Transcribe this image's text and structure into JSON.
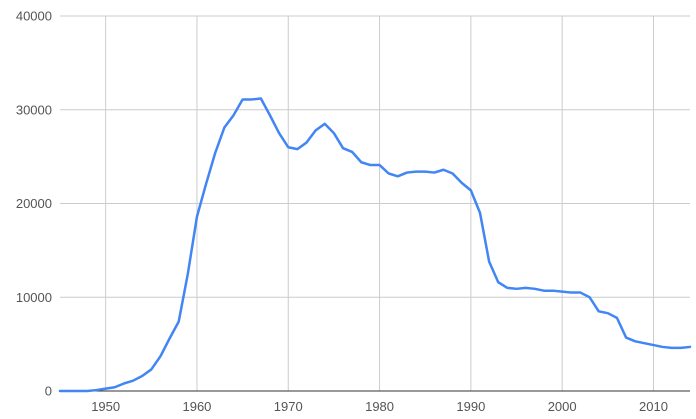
{
  "chart_data": {
    "type": "line",
    "title": "",
    "xlabel": "",
    "ylabel": "",
    "xlim": [
      1945,
      2014
    ],
    "ylim": [
      0,
      40000
    ],
    "x_ticks": [
      1950,
      1960,
      1970,
      1980,
      1990,
      2000,
      2010
    ],
    "y_ticks": [
      0,
      10000,
      20000,
      30000,
      40000
    ],
    "grid": true,
    "legend": "none",
    "colors": {
      "series": "#4285f4",
      "grid": "#cccccc",
      "axis": "#333333",
      "text": "#555555"
    },
    "series": [
      {
        "x": [
          1945,
          1946,
          1947,
          1948,
          1949,
          1950,
          1951,
          1952,
          1953,
          1954,
          1955,
          1956,
          1957,
          1958,
          1959,
          1960,
          1961,
          1962,
          1963,
          1964,
          1965,
          1966,
          1967,
          1968,
          1969,
          1970,
          1971,
          1972,
          1973,
          1974,
          1975,
          1976,
          1977,
          1978,
          1979,
          1980,
          1981,
          1982,
          1983,
          1984,
          1985,
          1986,
          1987,
          1988,
          1989,
          1990,
          1991,
          1992,
          1993,
          1994,
          1995,
          1996,
          1997,
          1998,
          1999,
          2000,
          2001,
          2002,
          2003,
          2004,
          2005,
          2006,
          2007,
          2008,
          2009,
          2010,
          2011,
          2012,
          2013,
          2014
        ],
        "values": [
          0,
          0,
          0,
          0,
          100,
          250,
          400,
          800,
          1100,
          1600,
          2300,
          3700,
          5600,
          7400,
          12500,
          18600,
          22100,
          25400,
          28100,
          29400,
          31100,
          31100,
          31200,
          29400,
          27500,
          26000,
          25800,
          26500,
          27800,
          28500,
          27500,
          25900,
          25500,
          24400,
          24100,
          24100,
          23200,
          22900,
          23300,
          23400,
          23400,
          23300,
          23600,
          23200,
          22200,
          21400,
          19000,
          13800,
          11600,
          11000,
          10900,
          11000,
          10900,
          10700,
          10700,
          10600,
          10500,
          10500,
          10000,
          8500,
          8300,
          7800,
          5700,
          5300,
          5100,
          4900,
          4700,
          4600,
          4600,
          4700
        ]
      }
    ]
  }
}
